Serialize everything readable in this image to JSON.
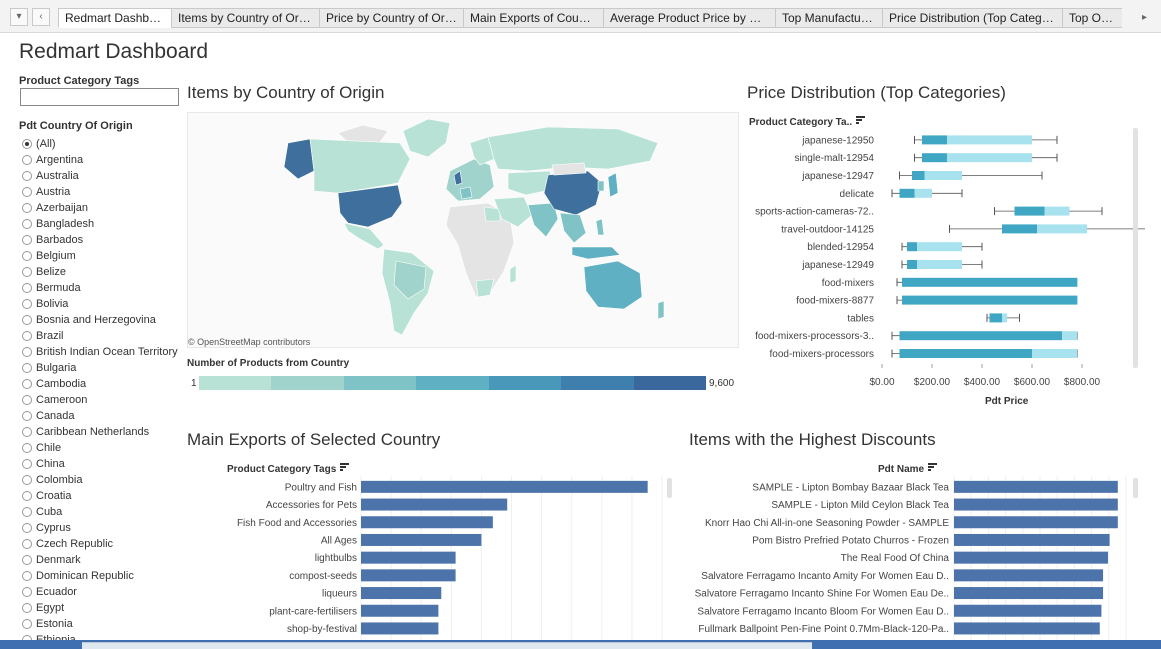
{
  "tabs": [
    "Redmart Dashboard",
    "Items by Country of Origin",
    "Price by Country of Origin",
    "Main Exports of Countries",
    "Average Product Price by Coun...",
    "Top Manufacturers",
    "Price Distribution (Top Categor...",
    "Top Organ"
  ],
  "dashboard_title": "Redmart Dashboard",
  "filters": {
    "category_tags_label": "Product Category Tags",
    "category_tags_value": "",
    "country_label": "Pdt Country Of Origin",
    "countries": [
      "(All)",
      "Argentina",
      "Australia",
      "Austria",
      "Azerbaijan",
      "Bangladesh",
      "Barbados",
      "Belgium",
      "Belize",
      "Bermuda",
      "Bolivia",
      "Bosnia and Herzegovina",
      "Brazil",
      "British Indian Ocean Territory",
      "Bulgaria",
      "Cambodia",
      "Cameroon",
      "Canada",
      "Caribbean Netherlands",
      "Chile",
      "China",
      "Colombia",
      "Croatia",
      "Cuba",
      "Cyprus",
      "Czech Republic",
      "Denmark",
      "Dominican Republic",
      "Ecuador",
      "Egypt",
      "Estonia",
      "Ethiopia"
    ],
    "selected_country": "(All)"
  },
  "map": {
    "title": "Items by Country of Origin",
    "credit": "© OpenStreetMap contributors",
    "legend_title": "Number of Products from Country",
    "legend_min": "1",
    "legend_max": "9,600",
    "legend_colors": [
      "#b9e2d6",
      "#9fd3cc",
      "#7fc3c7",
      "#5fb0c2",
      "#4a98b9",
      "#3f7fad",
      "#3a679c"
    ]
  },
  "price_chart": {
    "title": "Price Distribution (Top Categories)",
    "column_header": "Product Category Ta..",
    "axis_title": "Pdt Price",
    "x_ticks": [
      "$0.00",
      "$200.00",
      "$400.00",
      "$600.00",
      "$800.00"
    ],
    "chart_data": {
      "type": "box",
      "xlim": [
        0,
        1000
      ],
      "x_tick_values": [
        0,
        200,
        400,
        600,
        800
      ],
      "categories": [
        "japanese-12950",
        "single-malt-12954",
        "japanese-12947",
        "delicate",
        "sports-action-cameras-72..",
        "travel-outdoor-14125",
        "blended-12954",
        "japanese-12949",
        "food-mixers",
        "food-mixers-8877",
        "tables",
        "food-mixers-processors-3..",
        "food-mixers-processors"
      ],
      "min": [
        130,
        130,
        70,
        40,
        450,
        270,
        80,
        80,
        60,
        60,
        420,
        40,
        40
      ],
      "q1": [
        160,
        160,
        120,
        70,
        530,
        480,
        100,
        100,
        80,
        80,
        430,
        70,
        70
      ],
      "median": [
        260,
        260,
        170,
        130,
        650,
        620,
        140,
        140,
        780,
        780,
        480,
        720,
        600
      ],
      "q3": [
        600,
        600,
        320,
        200,
        750,
        820,
        320,
        320,
        780,
        780,
        500,
        780,
        780
      ],
      "max": [
        700,
        700,
        640,
        320,
        880,
        1070,
        400,
        400,
        780,
        780,
        550,
        780,
        780
      ]
    }
  },
  "exports_chart": {
    "title": "Main Exports of Selected Country",
    "column_header": "Product Category Tags",
    "chart_data": {
      "type": "bar",
      "orientation": "horizontal",
      "categories": [
        "Poultry and Fish",
        "Accessories for Pets",
        "Fish Food and Accessories",
        "All Ages",
        "lightbulbs",
        "compost-seeds",
        "liqueurs",
        "plant-care-fertilisers",
        "shop-by-festival"
      ],
      "values": [
        100,
        51,
        46,
        42,
        33,
        33,
        28,
        27,
        27
      ],
      "xlim": [
        0,
        105
      ]
    }
  },
  "discount_chart": {
    "title": "Items with the Highest Discounts",
    "column_header": "Pdt Name",
    "chart_data": {
      "type": "bar",
      "orientation": "horizontal",
      "categories": [
        "SAMPLE - Lipton Bombay Bazaar Black Tea",
        "SAMPLE - Lipton Mild Ceylon Black Tea",
        "Knorr Hao Chi All-in-one Seasoning Powder - SAMPLE",
        "Pom Bistro Prefried Potato Churros - Frozen",
        "The Real Food Of China",
        "Salvatore Ferragamo Incanto Amity For Women Eau D..",
        "Salvatore Ferragamo Incanto Shine For Women Eau De..",
        "Salvatore Ferragamo Incanto Bloom For Women Eau D..",
        "Fullmark Ballpoint Pen-Fine Point 0.7Mm-Black-120-Pa.."
      ],
      "values": [
        100,
        100,
        100,
        95,
        94,
        91,
        91,
        90,
        89
      ],
      "xlim": [
        0,
        105
      ]
    }
  },
  "colors": {
    "bar": "#4c74aa",
    "box_light": "#a8e2ee",
    "box_dark": "#3fa7c4",
    "whisker": "#555555",
    "map_land": "#e4e4e4",
    "map_low": "#b9e2d6",
    "map_mid": "#7fc3c7",
    "map_high": "#3f6f9c"
  }
}
